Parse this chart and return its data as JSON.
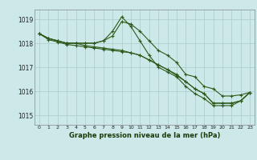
{
  "title": "Graphe pression niveau de la mer (hPa)",
  "background_color": "#cce8e8",
  "plot_bg_color": "#cce8e8",
  "grid_color": "#aacccc",
  "line_color": "#2d5a1b",
  "marker_color": "#2d5a1b",
  "xlim": [
    -0.5,
    23.5
  ],
  "ylim": [
    1014.6,
    1019.4
  ],
  "yticks": [
    1015,
    1016,
    1017,
    1018,
    1019
  ],
  "xticks": [
    0,
    1,
    2,
    3,
    4,
    5,
    6,
    7,
    8,
    9,
    10,
    11,
    12,
    13,
    14,
    15,
    16,
    17,
    18,
    19,
    20,
    21,
    22,
    23
  ],
  "series": [
    [
      1018.4,
      1018.2,
      1018.1,
      1018.0,
      1018.0,
      1018.0,
      1018.0,
      1018.1,
      1018.3,
      1018.9,
      1018.8,
      1018.5,
      1018.1,
      1017.7,
      1017.5,
      1017.2,
      1016.7,
      1016.6,
      1016.2,
      1016.1,
      1015.8,
      1015.8,
      1015.85,
      1015.95
    ],
    [
      1018.4,
      1018.2,
      1018.1,
      1018.0,
      1018.0,
      1018.0,
      1018.0,
      1018.1,
      1018.5,
      1019.1,
      1018.7,
      1018.1,
      1017.5,
      1017.0,
      1016.8,
      1016.6,
      1016.2,
      1015.9,
      1015.7,
      1015.4,
      1015.4,
      1015.4,
      1015.6,
      1015.95
    ],
    [
      1018.4,
      1018.2,
      1018.1,
      1018.0,
      1018.0,
      1017.9,
      1017.85,
      1017.8,
      1017.75,
      1017.7,
      1017.6,
      1017.5,
      1017.3,
      1017.1,
      1016.9,
      1016.7,
      1016.4,
      1016.1,
      1015.9,
      1015.5,
      1015.5,
      1015.5,
      1015.6,
      1015.95
    ],
    [
      1018.4,
      1018.15,
      1018.05,
      1017.95,
      1017.9,
      1017.85,
      1017.8,
      1017.75,
      1017.7,
      1017.65,
      1017.6,
      1017.5,
      1017.3,
      1017.1,
      1016.9,
      1016.65,
      1016.4,
      1016.1,
      1015.9,
      1015.5,
      1015.5,
      1015.5,
      1015.6,
      1015.95
    ]
  ]
}
